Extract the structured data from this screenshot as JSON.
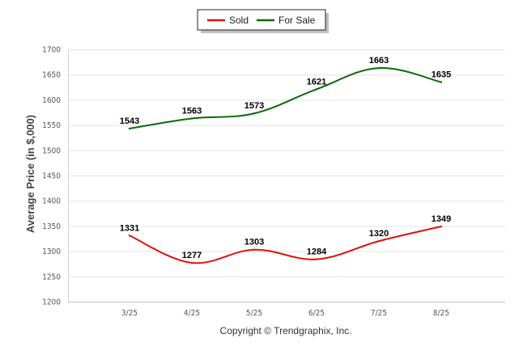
{
  "chart_data": {
    "type": "line",
    "categories": [
      "3/25",
      "4/25",
      "5/25",
      "6/25",
      "7/25",
      "8/25"
    ],
    "series": [
      {
        "name": "Sold",
        "color": "#e01010",
        "values": [
          1331,
          1277,
          1303,
          1284,
          1320,
          1349
        ]
      },
      {
        "name": "For Sale",
        "color": "#0a6a0a",
        "values": [
          1543,
          1563,
          1573,
          1621,
          1663,
          1635
        ]
      }
    ],
    "title": "",
    "xlabel": "",
    "ylabel": "Average Price (in $,000)",
    "ylim": [
      1200,
      1700
    ],
    "yticks": [
      1200,
      1250,
      1300,
      1350,
      1400,
      1450,
      1500,
      1550,
      1600,
      1650,
      1700
    ],
    "grid": true,
    "legend": "top-center",
    "data_labels": true
  },
  "footer": {
    "copyright": "Copyright © Trendgraphix, Inc."
  }
}
